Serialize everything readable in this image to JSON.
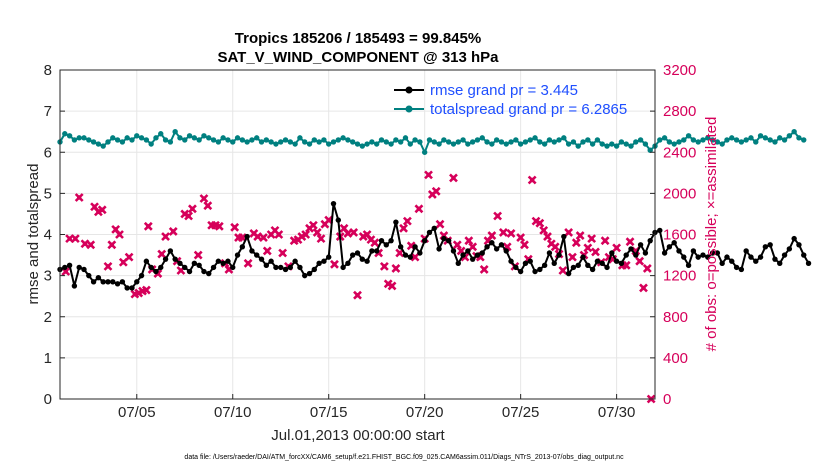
{
  "chart_data": {
    "type": "line",
    "title_line1": "Tropics 185206 / 185493 = 99.845%",
    "title_line2": "SAT_V_WIND_COMPONENT @ 313 hPa",
    "xlabel": "Jul.01,2013 00:00:00 start",
    "ylabel_left": "rmse and totalspread",
    "ylabel_right": "# of obs: o=possible; ×=assimilated",
    "footer": "data file: /Users/raeder/DAI/ATM_forcXX/CAM6_setup/f.e21.FHIST_BGC.f09_025.CAM6assim.011/Diags_NTrS_2013-07/obs_diag_output.nc",
    "x_range_days": [
      1.0,
      32.0
    ],
    "x_ticks": [
      5,
      10,
      15,
      20,
      25,
      30
    ],
    "x_tick_labels": [
      "07/05",
      "07/10",
      "07/15",
      "07/20",
      "07/25",
      "07/30"
    ],
    "y_left_range": [
      0,
      8
    ],
    "y_left_ticks": [
      "0",
      "1",
      "2",
      "3",
      "4",
      "5",
      "6",
      "7",
      "8"
    ],
    "y_right_range": [
      0,
      3200
    ],
    "y_right_ticks": [
      "0",
      "400",
      "800",
      "1200",
      "1600",
      "2000",
      "2400",
      "2800",
      "3200"
    ],
    "colors": {
      "rmse": "#000000",
      "spread": "#008080",
      "obs": "#d6005a",
      "legend_text": "#1f4fff",
      "grid": "#e6e6e6"
    },
    "series": [
      {
        "name": "rmse grand pr = 3.445",
        "axis": "left",
        "start_day": 1.0,
        "step_days": 0.25,
        "values": [
          3.15,
          3.2,
          3.25,
          2.75,
          3.2,
          3.15,
          3.0,
          2.85,
          2.95,
          2.85,
          2.85,
          2.85,
          2.8,
          2.85,
          2.7,
          2.7,
          2.85,
          3.0,
          3.35,
          3.2,
          3.1,
          3.2,
          3.4,
          3.6,
          3.4,
          3.3,
          3.2,
          3.1,
          3.3,
          3.25,
          3.1,
          3.05,
          3.2,
          3.35,
          3.3,
          3.35,
          3.2,
          3.5,
          3.7,
          3.95,
          3.6,
          3.5,
          3.4,
          3.25,
          3.35,
          3.2,
          3.2,
          3.15,
          3.2,
          3.35,
          3.2,
          3.0,
          3.05,
          3.15,
          3.3,
          3.35,
          3.45,
          4.75,
          4.35,
          3.2,
          3.3,
          3.5,
          3.55,
          3.4,
          3.35,
          3.6,
          3.6,
          3.85,
          3.75,
          3.85,
          4.3,
          3.7,
          3.5,
          3.45,
          3.7,
          3.55,
          3.85,
          4.05,
          4.15,
          3.65,
          3.9,
          3.85,
          3.6,
          3.3,
          3.5,
          3.6,
          3.4,
          3.5,
          3.55,
          3.7,
          3.8,
          3.65,
          3.75,
          3.6,
          3.35,
          3.2,
          3.1,
          3.3,
          3.35,
          3.1,
          3.15,
          3.25,
          3.55,
          3.3,
          3.5,
          3.95,
          3.05,
          3.2,
          3.25,
          3.45,
          3.25,
          3.15,
          3.35,
          3.3,
          3.2,
          3.55,
          3.35,
          3.3,
          3.5,
          3.65,
          3.5,
          3.75,
          3.55,
          3.85,
          4.05,
          4.1,
          3.55,
          3.7,
          3.8,
          3.6,
          3.45,
          3.25,
          3.6,
          3.45,
          3.5,
          3.45,
          3.55,
          3.55,
          3.3,
          3.45,
          3.35,
          3.2,
          3.15,
          3.6,
          3.45,
          3.35,
          3.45,
          3.7,
          3.75,
          3.4,
          3.3,
          3.5,
          3.65,
          3.9,
          3.75,
          3.5,
          3.3
        ]
      },
      {
        "name": "totalspread grand pr = 6.2865",
        "axis": "left",
        "start_day": 1.0,
        "step_days": 0.25,
        "values": [
          6.25,
          6.45,
          6.4,
          6.3,
          6.35,
          6.35,
          6.3,
          6.25,
          6.2,
          6.15,
          6.25,
          6.35,
          6.3,
          6.25,
          6.35,
          6.3,
          6.4,
          6.35,
          6.3,
          6.2,
          6.35,
          6.45,
          6.3,
          6.25,
          6.5,
          6.35,
          6.3,
          6.4,
          6.35,
          6.3,
          6.4,
          6.35,
          6.3,
          6.25,
          6.35,
          6.3,
          6.25,
          6.35,
          6.3,
          6.25,
          6.3,
          6.35,
          6.25,
          6.3,
          6.25,
          6.2,
          6.25,
          6.3,
          6.25,
          6.2,
          6.35,
          6.25,
          6.2,
          6.3,
          6.25,
          6.3,
          6.2,
          6.25,
          6.3,
          6.35,
          6.3,
          6.25,
          6.2,
          6.15,
          6.2,
          6.25,
          6.2,
          6.3,
          6.25,
          6.2,
          6.3,
          6.25,
          6.35,
          6.2,
          6.3,
          6.25,
          6.0,
          6.3,
          6.25,
          6.2,
          6.3,
          6.25,
          6.2,
          6.25,
          6.3,
          6.2,
          6.25,
          6.3,
          6.35,
          6.25,
          6.2,
          6.3,
          6.25,
          6.2,
          6.25,
          6.3,
          6.2,
          6.25,
          6.3,
          6.35,
          6.25,
          6.2,
          6.3,
          6.25,
          6.3,
          6.35,
          6.2,
          6.25,
          6.15,
          6.25,
          6.3,
          6.2,
          6.3,
          6.2,
          6.15,
          6.2,
          6.15,
          6.25,
          6.2,
          6.15,
          6.25,
          6.3,
          6.2,
          6.05,
          6.15,
          6.3,
          6.35,
          6.25,
          6.2,
          6.25,
          6.3,
          6.4,
          6.3,
          6.25,
          6.3,
          6.35,
          6.3,
          6.25,
          6.2,
          6.3,
          6.35,
          6.3,
          6.25,
          6.3,
          6.35,
          6.25,
          6.4,
          6.35,
          6.3,
          6.25,
          6.35,
          6.3,
          6.4,
          6.5,
          6.35,
          6.3
        ]
      },
      {
        "name": "obs assimilated",
        "axis": "right",
        "points": [
          [
            1.3,
            1240
          ],
          [
            1.5,
            1560
          ],
          [
            1.8,
            1560
          ],
          [
            2.0,
            1960
          ],
          [
            2.3,
            1510
          ],
          [
            2.6,
            1500
          ],
          [
            2.8,
            1870
          ],
          [
            3.0,
            1820
          ],
          [
            3.2,
            1840
          ],
          [
            3.5,
            1290
          ],
          [
            3.7,
            1500
          ],
          [
            3.9,
            1650
          ],
          [
            4.1,
            1600
          ],
          [
            4.3,
            1330
          ],
          [
            4.6,
            1380
          ],
          [
            4.9,
            1020
          ],
          [
            5.1,
            1030
          ],
          [
            5.3,
            1050
          ],
          [
            5.5,
            1060
          ],
          [
            5.6,
            1680
          ],
          [
            5.8,
            1260
          ],
          [
            6.1,
            1220
          ],
          [
            6.3,
            1410
          ],
          [
            6.5,
            1580
          ],
          [
            6.9,
            1630
          ],
          [
            7.1,
            1340
          ],
          [
            7.3,
            1250
          ],
          [
            7.5,
            1800
          ],
          [
            7.7,
            1780
          ],
          [
            7.9,
            1850
          ],
          [
            8.2,
            1400
          ],
          [
            8.5,
            1950
          ],
          [
            8.7,
            1880
          ],
          [
            8.9,
            1690
          ],
          [
            9.1,
            1690
          ],
          [
            9.3,
            1680
          ],
          [
            9.6,
            1320
          ],
          [
            9.8,
            1260
          ],
          [
            10.1,
            1670
          ],
          [
            10.3,
            1570
          ],
          [
            10.5,
            1570
          ],
          [
            10.8,
            1320
          ],
          [
            11.1,
            1610
          ],
          [
            11.3,
            1580
          ],
          [
            11.6,
            1570
          ],
          [
            11.8,
            1440
          ],
          [
            12.0,
            1600
          ],
          [
            12.2,
            1640
          ],
          [
            12.4,
            1600
          ],
          [
            12.6,
            1420
          ],
          [
            12.9,
            1290
          ],
          [
            13.2,
            1540
          ],
          [
            13.4,
            1550
          ],
          [
            13.6,
            1580
          ],
          [
            13.8,
            1600
          ],
          [
            14.0,
            1660
          ],
          [
            14.2,
            1690
          ],
          [
            14.4,
            1620
          ],
          [
            14.6,
            1560
          ],
          [
            14.8,
            1700
          ],
          [
            15.0,
            1740
          ],
          [
            15.3,
            1310
          ],
          [
            15.6,
            1580
          ],
          [
            15.8,
            1660
          ],
          [
            16.0,
            1610
          ],
          [
            16.3,
            1620
          ],
          [
            16.5,
            1010
          ],
          [
            16.8,
            1580
          ],
          [
            17.0,
            1600
          ],
          [
            17.2,
            1550
          ],
          [
            17.4,
            1520
          ],
          [
            17.6,
            1420
          ],
          [
            17.9,
            1290
          ],
          [
            18.1,
            1120
          ],
          [
            18.3,
            1100
          ],
          [
            18.5,
            1270
          ],
          [
            18.7,
            1420
          ],
          [
            18.9,
            1660
          ],
          [
            19.1,
            1730
          ],
          [
            19.3,
            1490
          ],
          [
            19.5,
            1380
          ],
          [
            19.7,
            1850
          ],
          [
            20.0,
            1560
          ],
          [
            20.2,
            2180
          ],
          [
            20.4,
            1990
          ],
          [
            20.6,
            2020
          ],
          [
            20.8,
            1700
          ],
          [
            21.0,
            1590
          ],
          [
            21.2,
            1540
          ],
          [
            21.5,
            2150
          ],
          [
            21.7,
            1500
          ],
          [
            21.9,
            1440
          ],
          [
            22.1,
            1380
          ],
          [
            22.3,
            1540
          ],
          [
            22.5,
            1480
          ],
          [
            22.7,
            1390
          ],
          [
            22.9,
            1380
          ],
          [
            23.1,
            1260
          ],
          [
            23.3,
            1540
          ],
          [
            23.5,
            1590
          ],
          [
            23.8,
            1780
          ],
          [
            24.1,
            1620
          ],
          [
            24.3,
            1480
          ],
          [
            24.5,
            1610
          ],
          [
            24.7,
            1290
          ],
          [
            25.0,
            1570
          ],
          [
            25.2,
            1500
          ],
          [
            25.4,
            1360
          ],
          [
            25.6,
            2130
          ],
          [
            25.8,
            1730
          ],
          [
            26.0,
            1710
          ],
          [
            26.2,
            1640
          ],
          [
            26.4,
            1580
          ],
          [
            26.6,
            1510
          ],
          [
            26.8,
            1480
          ],
          [
            27.0,
            1410
          ],
          [
            27.2,
            1250
          ],
          [
            27.5,
            1620
          ],
          [
            27.7,
            1380
          ],
          [
            27.9,
            1520
          ],
          [
            28.1,
            1590
          ],
          [
            28.3,
            1400
          ],
          [
            28.5,
            1470
          ],
          [
            28.7,
            1560
          ],
          [
            28.9,
            1430
          ],
          [
            29.2,
            1330
          ],
          [
            29.4,
            1540
          ],
          [
            29.6,
            1380
          ],
          [
            29.8,
            1360
          ],
          [
            30.0,
            1470
          ],
          [
            30.3,
            1300
          ],
          [
            30.5,
            1300
          ],
          [
            30.7,
            1530
          ],
          [
            31.0,
            1440
          ],
          [
            31.2,
            1340
          ],
          [
            31.4,
            1080
          ],
          [
            31.6,
            1270
          ],
          [
            31.8,
            0
          ]
        ]
      }
    ],
    "legend": [
      "rmse grand pr = 3.445",
      "totalspread grand pr = 6.2865"
    ]
  }
}
